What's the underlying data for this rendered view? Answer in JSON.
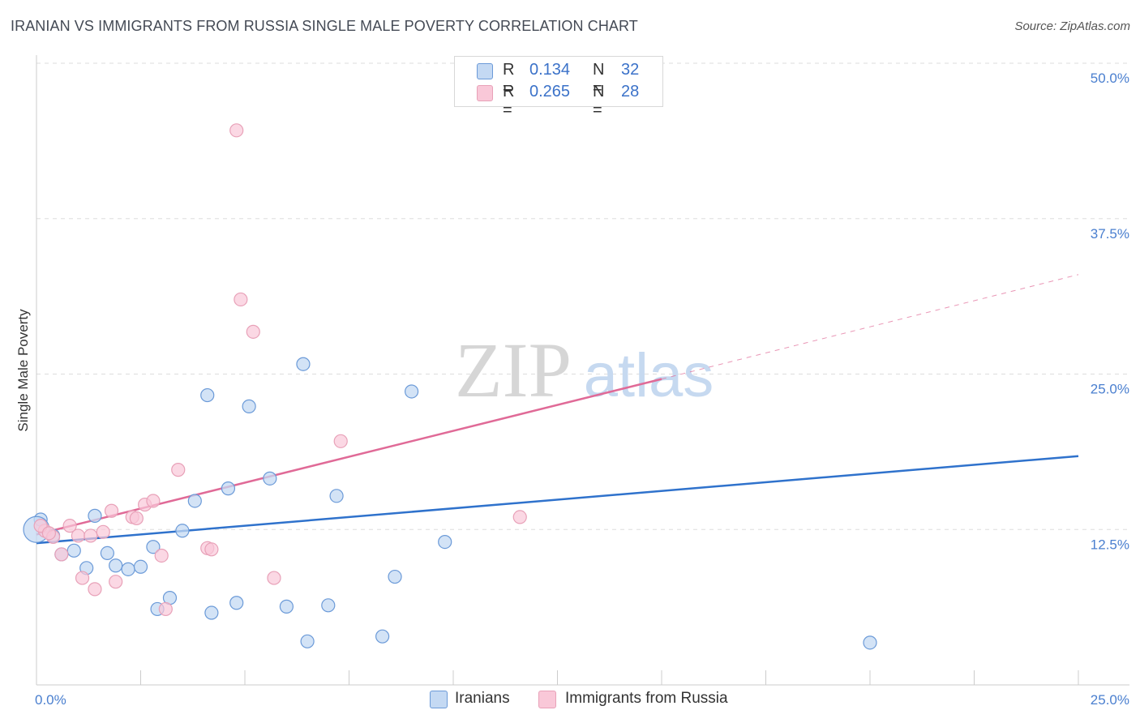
{
  "title": "IRANIAN VS IMMIGRANTS FROM RUSSIA SINGLE MALE POVERTY CORRELATION CHART",
  "source": "Source: ZipAtlas.com",
  "watermark": {
    "zip": "ZIP",
    "atlas": "atlas"
  },
  "colors": {
    "blue_fill": "#c4d9f3",
    "blue_stroke": "#6b9ad8",
    "blue_line": "#2f72cc",
    "pink_fill": "#f9c8d8",
    "pink_stroke": "#e8a1b8",
    "pink_line": "#e06a97",
    "grid": "#dddddd",
    "tick_text": "#4a7fcf"
  },
  "legend_top": [
    {
      "r_label": "R =",
      "r_value": "0.134",
      "n_label": "N =",
      "n_value": "32"
    },
    {
      "r_label": "R =",
      "r_value": "0.265",
      "n_label": "N =",
      "n_value": "28"
    }
  ],
  "legend_bottom": [
    "Iranians",
    "Immigrants from Russia"
  ],
  "chart_data": {
    "type": "scatter",
    "title": "IRANIAN VS IMMIGRANTS FROM RUSSIA SINGLE MALE POVERTY CORRELATION CHART",
    "xlabel": "",
    "ylabel": "Single Male Poverty",
    "xlim": [
      0,
      25
    ],
    "ylim": [
      0,
      50
    ],
    "x_tick_labels": [
      "0.0%",
      "25.0%"
    ],
    "y_ticks": [
      12.5,
      25.0,
      37.5,
      50.0
    ],
    "y_tick_labels": [
      "12.5%",
      "25.0%",
      "37.5%",
      "50.0%"
    ],
    "series": [
      {
        "name": "Iranians",
        "r": 0.134,
        "n": 32,
        "points": [
          [
            0.1,
            13.3
          ],
          [
            0.4,
            12.0
          ],
          [
            0.6,
            10.5
          ],
          [
            0.9,
            10.8
          ],
          [
            1.2,
            9.4
          ],
          [
            1.4,
            13.6
          ],
          [
            1.7,
            10.6
          ],
          [
            1.9,
            9.6
          ],
          [
            2.2,
            9.3
          ],
          [
            2.5,
            9.5
          ],
          [
            2.8,
            11.1
          ],
          [
            2.9,
            6.1
          ],
          [
            3.2,
            7.0
          ],
          [
            3.5,
            12.4
          ],
          [
            3.8,
            14.8
          ],
          [
            4.1,
            23.3
          ],
          [
            4.2,
            5.8
          ],
          [
            4.6,
            15.8
          ],
          [
            4.8,
            6.6
          ],
          [
            5.1,
            22.4
          ],
          [
            5.6,
            16.6
          ],
          [
            6.0,
            6.3
          ],
          [
            6.4,
            25.8
          ],
          [
            6.5,
            3.5
          ],
          [
            7.2,
            15.2
          ],
          [
            7.0,
            6.4
          ],
          [
            8.3,
            3.9
          ],
          [
            8.6,
            8.7
          ],
          [
            9.0,
            23.6
          ],
          [
            9.8,
            11.5
          ],
          [
            20.0,
            3.4
          ],
          [
            0.0,
            12.5
          ]
        ],
        "trend": {
          "x0": 0,
          "y0": 11.4,
          "x1": 25,
          "y1": 18.4
        }
      },
      {
        "name": "Immigrants from Russia",
        "r": 0.265,
        "n": 28,
        "points": [
          [
            0.2,
            12.4
          ],
          [
            0.4,
            11.9
          ],
          [
            0.6,
            10.5
          ],
          [
            0.8,
            12.8
          ],
          [
            1.0,
            12.0
          ],
          [
            1.1,
            8.6
          ],
          [
            1.3,
            12.0
          ],
          [
            1.4,
            7.7
          ],
          [
            1.6,
            12.3
          ],
          [
            1.8,
            14.0
          ],
          [
            1.9,
            8.3
          ],
          [
            2.3,
            13.5
          ],
          [
            2.4,
            13.4
          ],
          [
            2.6,
            14.5
          ],
          [
            2.8,
            14.8
          ],
          [
            3.0,
            10.4
          ],
          [
            3.1,
            6.1
          ],
          [
            3.4,
            17.3
          ],
          [
            4.1,
            11.0
          ],
          [
            4.2,
            10.9
          ],
          [
            4.8,
            44.6
          ],
          [
            4.9,
            31.0
          ],
          [
            5.2,
            28.4
          ],
          [
            5.7,
            8.6
          ],
          [
            7.3,
            19.6
          ],
          [
            11.6,
            13.5
          ],
          [
            0.1,
            12.8
          ],
          [
            0.3,
            12.2
          ]
        ],
        "trend": {
          "x0": 0,
          "y0": 12.1,
          "x1": 15,
          "y1": 24.6
        },
        "trend_dashed": {
          "x0": 15,
          "y0": 24.6,
          "x1": 25,
          "y1": 33.0
        }
      }
    ]
  }
}
